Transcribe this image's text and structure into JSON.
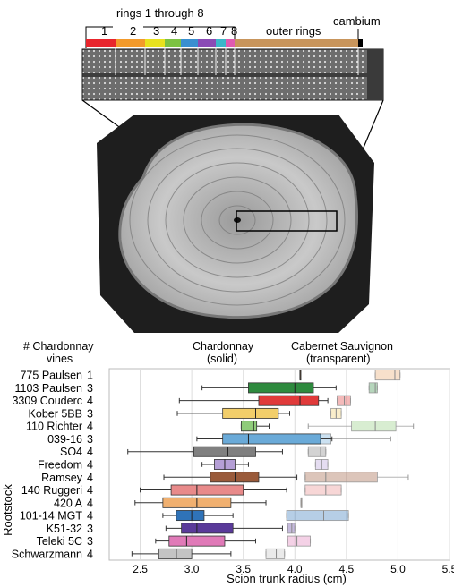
{
  "figure": {
    "top_labels": {
      "rings_title": "rings 1 through 8",
      "ring_numbers": [
        "1",
        "2",
        "3",
        "4",
        "5",
        "6",
        "7",
        "8"
      ],
      "outer_rings": "outer rings",
      "cambium": "cambium"
    },
    "ring_colors": [
      "#e8252c",
      "#f39a2b",
      "#e8e21e",
      "#7cc242",
      "#3a8fd0",
      "#8a4bb5",
      "#3bb7c9",
      "#e05ab0"
    ],
    "outer_color": "#c8955c",
    "cambium_color": "#000000"
  },
  "chart_data": {
    "type": "box",
    "title": "",
    "header_count": "# Chardonnay vines",
    "header_count_line1": "# Chardonnay",
    "header_count_line2": "vines",
    "series": [
      {
        "name": "Chardonnay (solid)",
        "line1": "Chardonnay",
        "line2": "(solid)",
        "style": "solid"
      },
      {
        "name": "Cabernet Sauvignon (transparent)",
        "line1": "Cabernet Sauvignon",
        "line2": "(transparent)",
        "style": "transparent"
      }
    ],
    "ylabel": "Rootstock",
    "xlabel": "Scion trunk radius (cm)",
    "xlim": [
      2.2,
      5.5
    ],
    "xticks": [
      "2.5",
      "3.0",
      "3.5",
      "4.0",
      "4.5",
      "5.0",
      "5.5"
    ],
    "grid": true,
    "rootstocks": [
      {
        "name": "775 Paulsen",
        "n": "1",
        "color": "#e8a56a",
        "chard": {
          "median": 4.05,
          "q1": 4.05,
          "q3": 4.05,
          "wlo": 4.05,
          "whi": 4.05
        },
        "cab": {
          "q1": 4.78,
          "median": 4.97,
          "q3": 5.02,
          "wlo": 4.78,
          "whi": 5.02
        }
      },
      {
        "name": "1103 Paulsen",
        "n": "3",
        "color": "#2e8a3e",
        "chard": {
          "wlo": 3.1,
          "q1": 3.55,
          "median": 4.0,
          "q3": 4.18,
          "whi": 4.4
        },
        "cab": {
          "q1": 4.72,
          "median": 4.78,
          "q3": 4.8,
          "wlo": 4.72,
          "whi": 4.8
        }
      },
      {
        "name": "3309 Couderc",
        "n": "4",
        "color": "#e03a3a",
        "chard": {
          "wlo": 2.88,
          "q1": 3.65,
          "median": 4.05,
          "q3": 4.23,
          "whi": 4.32
        },
        "cab": {
          "q1": 4.41,
          "median": 4.48,
          "q3": 4.54,
          "wlo": 4.41,
          "whi": 4.54
        }
      },
      {
        "name": "Kober 5BB",
        "n": "3",
        "color": "#f2ce6a",
        "chard": {
          "wlo": 2.86,
          "q1": 3.3,
          "median": 3.62,
          "q3": 3.84,
          "whi": 3.95
        },
        "cab": {
          "q1": 4.35,
          "median": 4.4,
          "q3": 4.45,
          "wlo": 4.35,
          "whi": 4.45
        }
      },
      {
        "name": "110 Richter",
        "n": "4",
        "color": "#8fcc7a",
        "chard": {
          "wlo": 3.48,
          "q1": 3.48,
          "median": 3.6,
          "q3": 3.63,
          "whi": 3.75
        },
        "cab": {
          "q1": 4.55,
          "median": 4.78,
          "q3": 4.98,
          "wlo": 4.13,
          "whi": 5.15
        }
      },
      {
        "name": "039-16",
        "n": "3",
        "color": "#6aaad8",
        "chard": {
          "wlo": 3.05,
          "q1": 3.3,
          "median": 3.55,
          "q3": 4.25,
          "whi": 4.36
        },
        "cab": {
          "q1": 4.15,
          "median": 4.22,
          "q3": 4.35,
          "wlo": 4.15,
          "whi": 4.93
        }
      },
      {
        "name": "SO4",
        "n": "4",
        "color": "#808080",
        "chard": {
          "wlo": 2.38,
          "q1": 3.02,
          "median": 3.35,
          "q3": 3.62,
          "whi": 3.88
        },
        "cab": {
          "q1": 4.13,
          "median": 4.25,
          "q3": 4.3,
          "wlo": 4.13,
          "whi": 4.3
        }
      },
      {
        "name": "Freedom",
        "n": "4",
        "color": "#b59fd6",
        "chard": {
          "wlo": 3.1,
          "q1": 3.22,
          "median": 3.32,
          "q3": 3.42,
          "whi": 3.55
        },
        "cab": {
          "q1": 4.2,
          "median": 4.26,
          "q3": 4.32,
          "wlo": 4.2,
          "whi": 4.32
        }
      },
      {
        "name": "Ramsey",
        "n": "4",
        "color": "#9a5a3a",
        "chard": {
          "wlo": 2.73,
          "q1": 3.18,
          "median": 3.42,
          "q3": 3.65,
          "whi": 4.02
        },
        "cab": {
          "q1": 4.1,
          "median": 4.3,
          "q3": 4.8,
          "wlo": 4.1,
          "whi": 5.1
        }
      },
      {
        "name": "140 Ruggeri",
        "n": "4",
        "color": "#e88a8a",
        "chard": {
          "wlo": 2.5,
          "q1": 2.8,
          "median": 3.05,
          "q3": 3.5,
          "whi": 3.92
        },
        "cab": {
          "q1": 4.1,
          "median": 4.3,
          "q3": 4.45,
          "wlo": 4.1,
          "whi": 4.45
        }
      },
      {
        "name": "420 A",
        "n": "4",
        "color": "#f0b070",
        "chard": {
          "wlo": 2.45,
          "q1": 2.72,
          "median": 3.05,
          "q3": 3.38,
          "whi": 3.72
        },
        "cab": {
          "q1": 4.06,
          "median": 4.06,
          "q3": 4.06,
          "wlo": 4.06,
          "whi": 4.06
        }
      },
      {
        "name": "101-14 MGT",
        "n": "4",
        "color": "#2f73b8",
        "chard": {
          "wlo": 2.72,
          "q1": 2.85,
          "median": 3.0,
          "q3": 3.12,
          "whi": 3.4
        },
        "cab": {
          "q1": 3.92,
          "median": 4.28,
          "q3": 4.52,
          "wlo": 3.92,
          "whi": 4.52
        }
      },
      {
        "name": "K51-32",
        "n": "3",
        "color": "#5a3a9a",
        "chard": {
          "wlo": 2.75,
          "q1": 2.9,
          "median": 3.05,
          "q3": 3.4,
          "whi": 3.88
        },
        "cab": {
          "q1": 3.93,
          "median": 3.97,
          "q3": 4.0,
          "wlo": 3.93,
          "whi": 4.0
        }
      },
      {
        "name": "Teleki 5C",
        "n": "3",
        "color": "#e07ab8",
        "chard": {
          "wlo": 2.65,
          "q1": 2.78,
          "median": 2.95,
          "q3": 3.32,
          "whi": 3.62
        },
        "cab": {
          "q1": 3.93,
          "median": 4.02,
          "q3": 4.15,
          "wlo": 3.93,
          "whi": 4.15
        }
      },
      {
        "name": "Schwarzmann",
        "n": "4",
        "color": "#c4c4c4",
        "chard": {
          "wlo": 2.42,
          "q1": 2.68,
          "median": 2.85,
          "q3": 3.0,
          "whi": 3.38
        },
        "cab": {
          "q1": 3.72,
          "median": 3.82,
          "q3": 3.9,
          "wlo": 3.72,
          "whi": 3.9
        }
      }
    ]
  }
}
